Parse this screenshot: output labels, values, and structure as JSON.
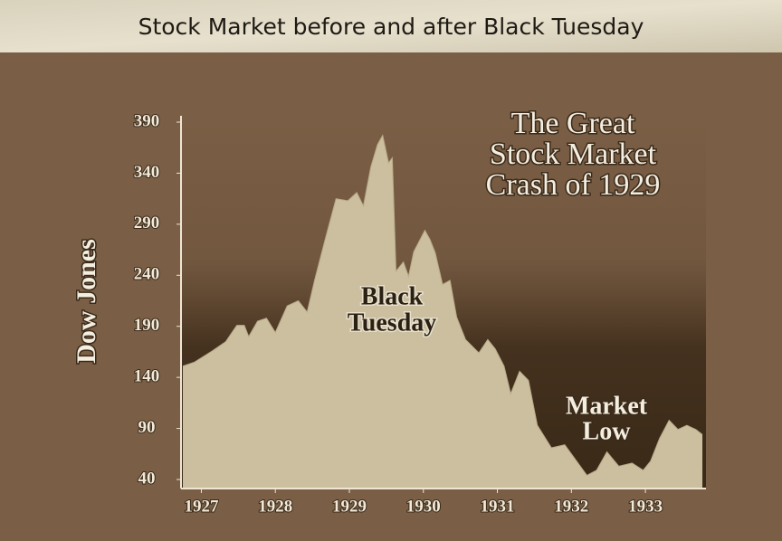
{
  "chart_data": {
    "type": "area",
    "title": "Stock Market before and after Black Tuesday",
    "y_label": "Dow Jones",
    "annotations": [
      {
        "lines": [
          "The Great",
          "Stock Market",
          "Crash of 1929"
        ]
      },
      {
        "lines": [
          "Black",
          "Tuesday"
        ]
      },
      {
        "lines": [
          "Market",
          "Low"
        ]
      }
    ],
    "color": "#cbbf9f",
    "x": [
      1926.75,
      1926.91,
      1927.15,
      1927.33,
      1927.48,
      1927.58,
      1927.64,
      1927.76,
      1927.88,
      1928.0,
      1928.16,
      1928.31,
      1928.43,
      1928.53,
      1928.68,
      1928.82,
      1928.98,
      1929.1,
      1929.19,
      1929.29,
      1929.38,
      1929.45,
      1929.53,
      1929.58,
      1929.63,
      1929.73,
      1929.8,
      1929.87,
      1930.02,
      1930.09,
      1930.16,
      1930.26,
      1930.36,
      1930.45,
      1930.57,
      1930.75,
      1930.87,
      1930.97,
      1931.09,
      1931.18,
      1931.3,
      1931.42,
      1931.54,
      1931.73,
      1931.91,
      1932.03,
      1932.21,
      1932.34,
      1932.48,
      1932.64,
      1932.82,
      1932.97,
      1933.07,
      1933.19,
      1933.32,
      1933.44,
      1933.56,
      1933.68,
      1933.77
    ],
    "values": [
      151,
      155,
      166,
      175,
      191,
      191,
      180,
      195,
      198,
      184,
      210,
      215,
      204,
      235,
      277,
      315,
      313,
      321,
      308,
      346,
      368,
      377,
      350,
      355,
      244,
      253,
      239,
      263,
      284,
      275,
      262,
      231,
      235,
      199,
      177,
      164,
      177,
      168,
      151,
      124,
      146,
      137,
      93,
      71,
      74,
      62,
      44,
      49,
      67,
      53,
      56,
      49,
      58,
      80,
      98,
      89,
      93,
      89,
      84
    ],
    "xlim": [
      1926.75,
      1933.8
    ],
    "xticks": [
      1927,
      1928,
      1929,
      1930,
      1931,
      1932,
      1933
    ],
    "ylim": [
      40,
      390
    ],
    "yticks": [
      40,
      90,
      140,
      190,
      240,
      290,
      340,
      390
    ]
  }
}
